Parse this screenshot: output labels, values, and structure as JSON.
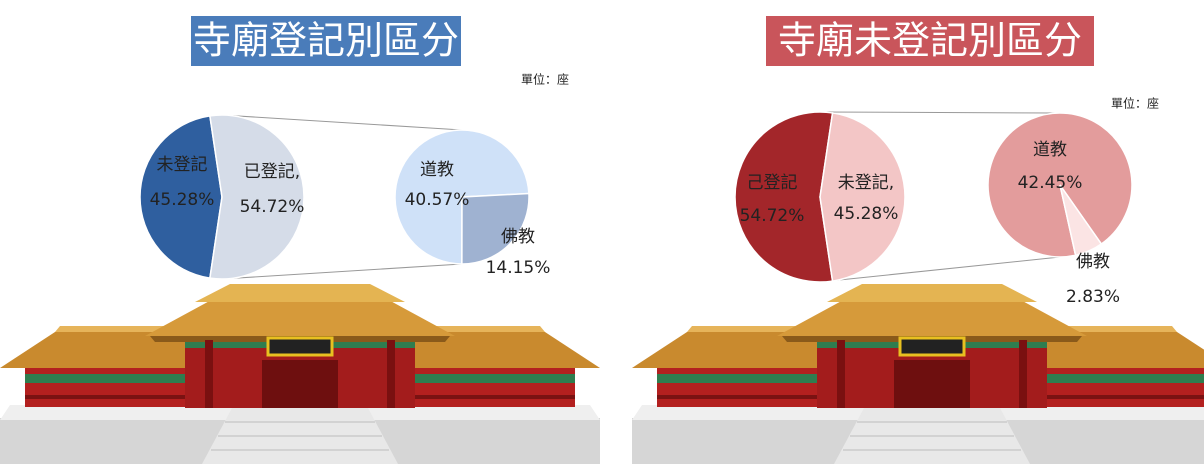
{
  "chart_data": [
    {
      "type": "pie",
      "title": "寺廟登記別區分",
      "unit": "單位：座",
      "title_color": "#4a7cba",
      "categories": [
        "未登記",
        "已登記,"
      ],
      "values": [
        45.28,
        54.72
      ],
      "value_labels": [
        "45.28%",
        "54.72%"
      ],
      "colors": [
        "#2f5f9f",
        "#d5dce8"
      ],
      "breakout": {
        "categories": [
          "道教",
          "佛教"
        ],
        "values": [
          40.57,
          14.15
        ],
        "value_labels": [
          "40.57%",
          "14.15%"
        ],
        "colors": [
          "#cfe1f8",
          "#9fb2d1"
        ]
      }
    },
    {
      "type": "pie",
      "title": "寺廟未登記別區分",
      "unit": "單位：座",
      "title_color": "#c9555b",
      "categories": [
        "己登記",
        "未登記,"
      ],
      "values": [
        54.72,
        45.28
      ],
      "value_labels": [
        "54.72%",
        "45.28%"
      ],
      "colors": [
        "#a3262a",
        "#f3c6c6"
      ],
      "breakout": {
        "categories": [
          "道教",
          "佛教"
        ],
        "values": [
          42.45,
          2.83
        ],
        "value_labels": [
          "42.45%",
          "2.83%"
        ],
        "colors": [
          "#e39c9c",
          "#fbe4e4"
        ]
      }
    }
  ]
}
